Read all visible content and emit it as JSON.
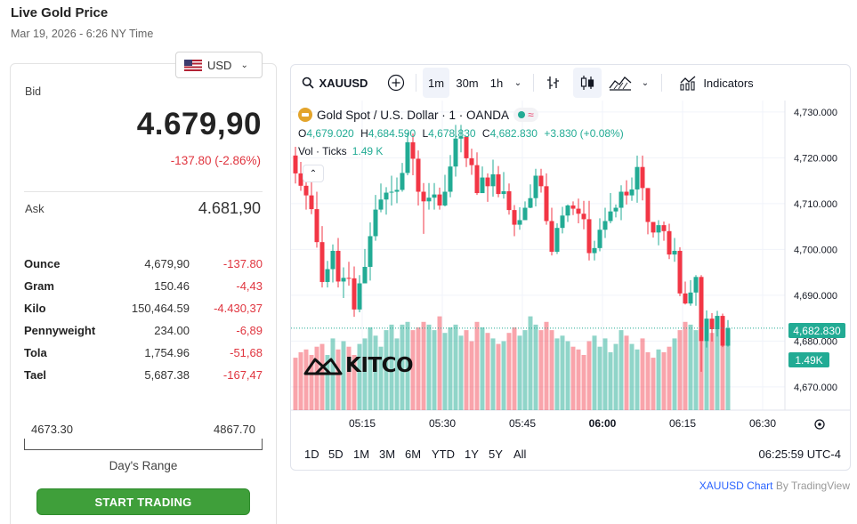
{
  "page": {
    "title": "Live Gold Price",
    "date": "Mar 19, 2026 - 6:26 NY Time"
  },
  "currency": {
    "selected": "USD"
  },
  "quote": {
    "bid_label": "Bid",
    "bid": "4.679,90",
    "bid_change": "-137.80 (-2.86%)",
    "ask_label": "Ask",
    "ask": "4.681,90"
  },
  "units": [
    {
      "name": "Ounce",
      "price": "4,679,90",
      "change": "-137.80"
    },
    {
      "name": "Gram",
      "price": "150.46",
      "change": "-4,43"
    },
    {
      "name": "Kilo",
      "price": "150,464.59",
      "change": "-4.430,37"
    },
    {
      "name": "Pennyweight",
      "price": "234.00",
      "change": "-6,89"
    },
    {
      "name": "Tola",
      "price": "1,754.96",
      "change": "-51,68"
    },
    {
      "name": "Tael",
      "price": "5,687.38",
      "change": "-167,47"
    }
  ],
  "days_range": {
    "low": "4673.30",
    "high": "4867.70",
    "label": "Day's Range"
  },
  "start_trading": "START TRADING",
  "chart_toolbar": {
    "symbol": "XAUUSD",
    "intervals": [
      "1m",
      "30m",
      "1h"
    ],
    "active_interval": "1m",
    "indicators": "Indicators"
  },
  "legend": {
    "title": "Gold Spot / U.S. Dollar · 1 · OANDA",
    "open_label": "O",
    "open": "4,679.020",
    "high_label": "H",
    "high": "4,684.590",
    "low_label": "L",
    "low": "4,678.830",
    "close_label": "C",
    "close": "4,682.830",
    "change": "+3.830 (+0.08%)",
    "vol_label": "Vol · Ticks",
    "vol_value": "1.49 K"
  },
  "watermark": "KITCO",
  "last_price_tag": "4,682.830",
  "last_volume_tag": "1.49K",
  "range_buttons": [
    "1D",
    "5D",
    "1M",
    "3M",
    "6M",
    "YTD",
    "1Y",
    "5Y",
    "All"
  ],
  "clock": "06:25:59 UTC-4",
  "attribution": {
    "symbol": "XAUUSD",
    "chart": "Chart",
    "by": "By TradingView"
  },
  "colors": {
    "up": "#22ab94",
    "down": "#f23645",
    "accent": "#3f9f3a",
    "negative": "#e0353f"
  },
  "chart_data": {
    "type": "candlestick",
    "title": "Gold Spot / U.S. Dollar · 1 · OANDA",
    "y_ticks": [
      "4,730.000",
      "4,720.000",
      "4,710.000",
      "4,700.000",
      "4,690.000",
      "4,680.000",
      "4,670.000"
    ],
    "y_tick_values": [
      4730,
      4720,
      4710,
      4700,
      4690,
      4680,
      4670
    ],
    "ylim": [
      4666.6,
      4732.6
    ],
    "x_ticks": [
      "05:15",
      "05:30",
      "05:45",
      "06:00",
      "06:15",
      "06:30"
    ],
    "x_tick_index": [
      12.5,
      27.5,
      42.5,
      57.5,
      72.5,
      87.5
    ],
    "grid": true,
    "candles": [
      [
        4720.5,
        4716.6,
        4722.4,
        4714.4
      ],
      [
        4716.6,
        4713.9,
        4719.1,
        4712.8
      ],
      [
        4713.9,
        4711.8,
        4717.1,
        4708.7
      ],
      [
        4711.8,
        4708.8,
        4715.6,
        4707.7
      ],
      [
        4708.8,
        4701.6,
        4712.6,
        4700.4
      ],
      [
        4701.6,
        4692.9,
        4705.1,
        4691.7
      ],
      [
        4692.9,
        4695.7,
        4697.5,
        4691.7
      ],
      [
        4695.7,
        4699.7,
        4701.1,
        4692.8
      ],
      [
        4699.7,
        4693.0,
        4702.5,
        4691.7
      ],
      [
        4693.0,
        4693.8,
        4696.1,
        4689.4
      ],
      [
        4693.8,
        4693.7,
        4697.3,
        4692.1
      ],
      [
        4693.7,
        4686.9,
        4696.3,
        4685.3
      ],
      [
        4686.9,
        4692.6,
        4694.4,
        4686.3
      ],
      [
        4692.6,
        4696.2,
        4700.1,
        4693.8
      ],
      [
        4696.2,
        4702.9,
        4705.9,
        4693.2
      ],
      [
        4702.9,
        4708.7,
        4711.9,
        4701.9
      ],
      [
        4708.7,
        4710.9,
        4714.4,
        4708.1
      ],
      [
        4710.9,
        4712.4,
        4713.6,
        4707.6
      ],
      [
        4712.4,
        4712.6,
        4716.1,
        4709.6
      ],
      [
        4712.6,
        4713.0,
        4715.7,
        4710.1
      ],
      [
        4713.0,
        4716.7,
        4718.9,
        4712.6
      ],
      [
        4716.7,
        4723.4,
        4725.5,
        4716.2
      ],
      [
        4723.4,
        4719.8,
        4725.3,
        4716.2
      ],
      [
        4719.8,
        4712.6,
        4721.6,
        4709.6
      ],
      [
        4712.6,
        4710.5,
        4714.5,
        4703.4
      ],
      [
        4710.5,
        4711.3,
        4714.5,
        4708.7
      ],
      [
        4711.3,
        4712.0,
        4714.5,
        4708.7
      ],
      [
        4712.0,
        4709.6,
        4713.5,
        4708.7
      ],
      [
        4709.6,
        4712.6,
        4716.3,
        4709.4
      ],
      [
        4712.6,
        4718.1,
        4720.6,
        4711.4
      ],
      [
        4718.1,
        4724.2,
        4727.2,
        4715.9
      ],
      [
        4724.2,
        4724.6,
        4727.2,
        4721.2
      ],
      [
        4724.6,
        4719.9,
        4724.7,
        4718.0
      ],
      [
        4719.9,
        4718.4,
        4722.0,
        4716.3
      ],
      [
        4718.4,
        4712.3,
        4721.2,
        4711.9
      ],
      [
        4712.3,
        4715.7,
        4718.1,
        4712.3
      ],
      [
        4715.7,
        4713.8,
        4716.6,
        4710.4
      ],
      [
        4713.8,
        4716.4,
        4719.6,
        4711.5
      ],
      [
        4716.4,
        4712.1,
        4718.2,
        4711.4
      ],
      [
        4712.1,
        4712.7,
        4716.9,
        4711.1
      ],
      [
        4712.7,
        4708.6,
        4714.4,
        4707.6
      ],
      [
        4708.6,
        4705.4,
        4709.7,
        4702.9
      ],
      [
        4705.4,
        4706.4,
        4709.2,
        4704.3
      ],
      [
        4706.4,
        4709.1,
        4710.5,
        4707.4
      ],
      [
        4709.1,
        4711.2,
        4714.2,
        4709.0
      ],
      [
        4711.2,
        4716.1,
        4717.6,
        4709.4
      ],
      [
        4716.1,
        4713.8,
        4717.6,
        4712.4
      ],
      [
        4713.8,
        4706.2,
        4716.6,
        4705.4
      ],
      [
        4706.2,
        4699.5,
        4709.1,
        4698.7
      ],
      [
        4699.5,
        4704.7,
        4705.7,
        4699.0
      ],
      [
        4704.7,
        4707.4,
        4709.3,
        4703.5
      ],
      [
        4707.4,
        4709.6,
        4709.8,
        4706.0
      ],
      [
        4709.6,
        4708.9,
        4710.5,
        4707.5
      ],
      [
        4708.9,
        4707.8,
        4711.1,
        4705.7
      ],
      [
        4707.8,
        4706.6,
        4710.6,
        4704.4
      ],
      [
        4706.6,
        4699.2,
        4710.6,
        4697.6
      ],
      [
        4699.2,
        4700.3,
        4701.9,
        4697.6
      ],
      [
        4700.3,
        4704.3,
        4706.8,
        4699.6
      ],
      [
        4704.3,
        4706.2,
        4709.1,
        4702.5
      ],
      [
        4706.2,
        4708.3,
        4712.3,
        4705.7
      ],
      [
        4708.3,
        4709.1,
        4709.8,
        4707.0
      ],
      [
        4709.1,
        4712.6,
        4714.0,
        4706.4
      ],
      [
        4712.6,
        4711.8,
        4715.1,
        4709.8
      ],
      [
        4711.8,
        4713.1,
        4715.7,
        4710.6
      ],
      [
        4713.1,
        4718.0,
        4720.5,
        4710.2
      ],
      [
        4718.0,
        4713.4,
        4720.5,
        4710.7
      ],
      [
        4713.4,
        4706.0,
        4713.4,
        4703.3
      ],
      [
        4706.0,
        4703.7,
        4706.0,
        4702.6
      ],
      [
        4703.7,
        4705.3,
        4706.4,
        4700.9
      ],
      [
        4705.3,
        4704.0,
        4706.1,
        4701.9
      ],
      [
        4704.0,
        4698.9,
        4705.6,
        4697.9
      ],
      [
        4698.9,
        4699.7,
        4702.5,
        4697.3
      ],
      [
        4699.7,
        4690.4,
        4700.5,
        4689.8
      ],
      [
        4690.4,
        4688.2,
        4693.0,
        4688.0
      ],
      [
        4688.2,
        4690.6,
        4693.3,
        4687.7
      ],
      [
        4690.6,
        4694.0,
        4694.4,
        4687.7
      ],
      [
        4694.0,
        4680.0,
        4694.4,
        4673.3
      ],
      [
        4680.0,
        4684.9,
        4686.7,
        4678.6
      ],
      [
        4684.9,
        4682.6,
        4686.1,
        4679.9
      ],
      [
        4682.6,
        4685.5,
        4686.6,
        4681.0
      ],
      [
        4685.5,
        4679.0,
        4686.0,
        4678.7
      ],
      [
        4679.0,
        4682.8,
        4684.6,
        4678.8
      ]
    ],
    "volume_direction_note": "volume bars colored by candle direction",
    "volume": [
      0.95,
      1.05,
      1.1,
      1.0,
      1.15,
      1.2,
      1.0,
      1.3,
      1.1,
      1.25,
      1.15,
      1.0,
      1.2,
      1.3,
      1.5,
      1.35,
      1.15,
      1.45,
      1.55,
      1.3,
      1.55,
      1.6,
      1.45,
      1.5,
      1.6,
      1.55,
      1.45,
      1.7,
      1.4,
      1.5,
      1.55,
      1.35,
      1.45,
      1.25,
      1.6,
      1.5,
      1.4,
      1.3,
      1.2,
      1.25,
      1.4,
      1.5,
      1.35,
      1.45,
      1.7,
      1.55,
      1.45,
      1.6,
      1.45,
      1.3,
      1.35,
      1.25,
      1.15,
      1.1,
      1.0,
      1.25,
      1.35,
      1.15,
      1.3,
      1.05,
      1.2,
      1.45,
      1.35,
      1.2,
      1.1,
      1.3,
      1.05,
      0.95,
      1.1,
      1.05,
      1.15,
      1.3,
      1.45,
      1.6,
      1.55,
      1.45,
      1.25,
      1.6,
      1.4,
      1.5,
      1.55,
      1.49
    ]
  }
}
